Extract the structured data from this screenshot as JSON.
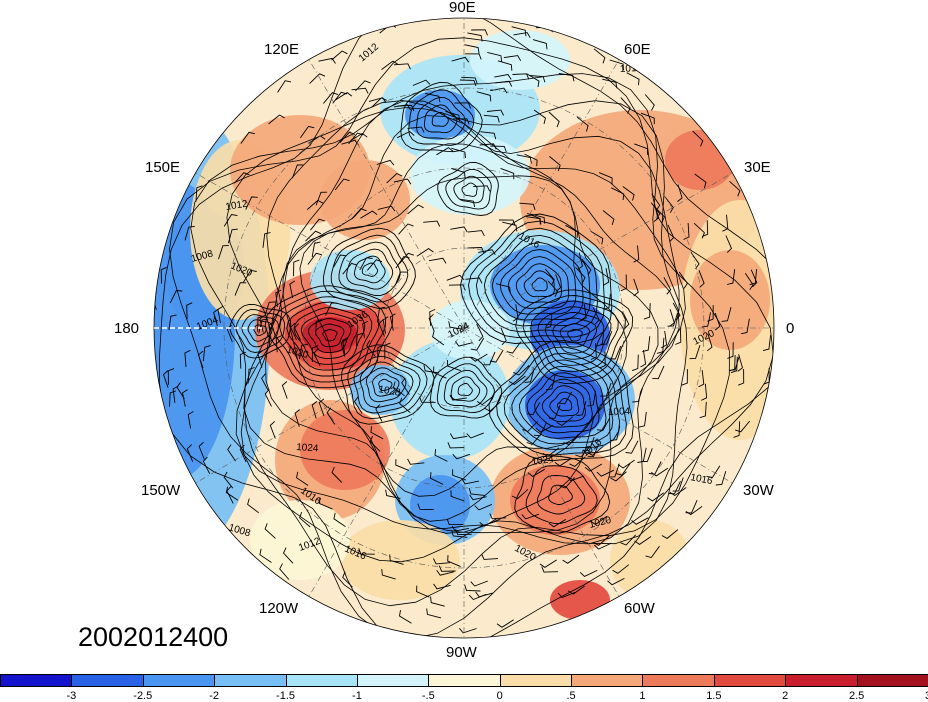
{
  "map": {
    "timestamp": "2002012400",
    "longitude_labels": {
      "lon_90e": "90E",
      "lon_120e": "120E",
      "lon_60e": "60E",
      "lon_150e": "150E",
      "lon_30e": "30E",
      "lon_180": "180",
      "lon_0": "0",
      "lon_150w": "150W",
      "lon_30w": "30W",
      "lon_120w": "120W",
      "lon_60w": "60W",
      "lon_90w": "90W"
    },
    "contour_labels": [
      "1012",
      "1016",
      "1012",
      "1012",
      "1016",
      "1008",
      "1020",
      "1004",
      "1020",
      "1024",
      "1028",
      "1036",
      "1024",
      "1016",
      "1004",
      "1016",
      "1024",
      "1020",
      "1020",
      "1016",
      "1012",
      "1008",
      "1020",
      "1016"
    ]
  },
  "colorbar": {
    "colors": [
      "#1414cc",
      "#2a62e6",
      "#4a95f0",
      "#78bff5",
      "#a8e4f7",
      "#d4f4fb",
      "#fdf6d6",
      "#fadda8",
      "#f4a87a",
      "#ee7a5c",
      "#e34a3f",
      "#c81e2e",
      "#a3101e"
    ],
    "tick_labels": [
      "-3",
      "-2.5",
      "-2",
      "-1.5",
      "-1",
      "-.5",
      "0",
      ".5",
      "1",
      "1.5",
      "2",
      "2.5",
      "3"
    ]
  }
}
